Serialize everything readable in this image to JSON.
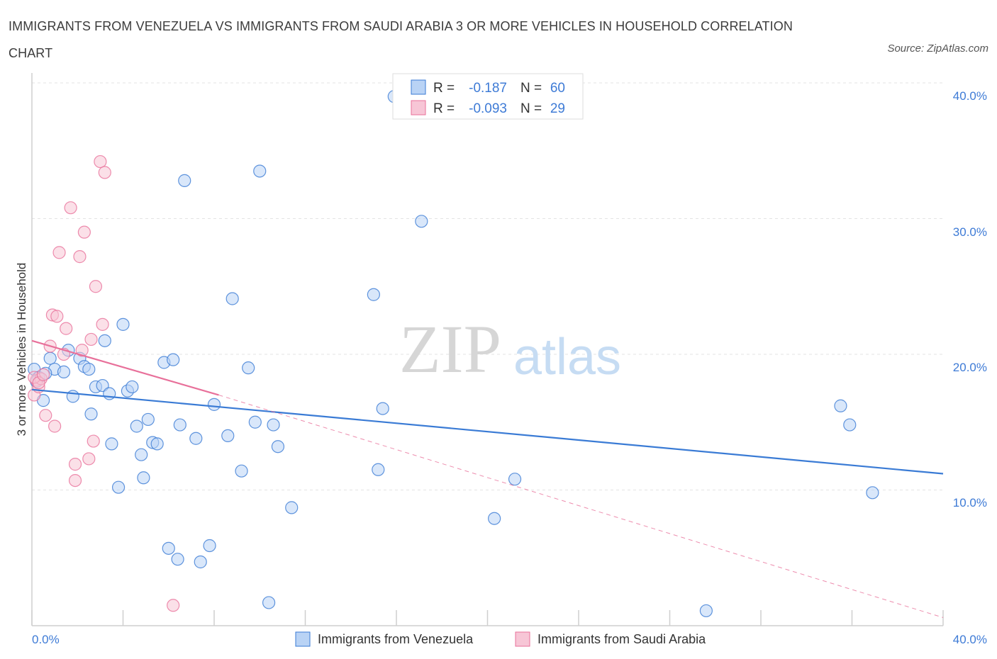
{
  "title": "IMMIGRANTS FROM VENEZUELA VS IMMIGRANTS FROM SAUDI ARABIA 3 OR MORE VEHICLES IN HOUSEHOLD CORRELATION CHART",
  "source": "Source: ZipAtlas.com",
  "watermark": {
    "zip": "ZIP",
    "atlas": "atlas"
  },
  "colors": {
    "blue": "#3a7bd5",
    "pink": "#e8709a",
    "blue_fill": "#b9d3f5",
    "pink_fill": "#f7c6d6"
  },
  "legend": {
    "rows": [
      {
        "r_label": "R =",
        "r_value": "-0.187",
        "n_label": "N =",
        "n_value": "60"
      },
      {
        "r_label": "R =",
        "r_value": "-0.093",
        "n_label": "N =",
        "n_value": "29"
      }
    ]
  },
  "chart_data": {
    "type": "scatter",
    "xlabel": "",
    "ylabel": "3 or more Vehicles in Household",
    "xlim": [
      0,
      40
    ],
    "ylim": [
      0,
      40
    ],
    "x_tick_labels": [
      "0.0%",
      "40.0%"
    ],
    "y_tick_labels": [
      "10.0%",
      "20.0%",
      "30.0%",
      "40.0%"
    ],
    "y_ticks": [
      10,
      20,
      30,
      40
    ],
    "series": [
      {
        "name": "Immigrants from Venezuela",
        "color": "#3a7bd5",
        "trend": {
          "x": [
            0,
            40
          ],
          "y": [
            17.4,
            11.2
          ],
          "style": "solid"
        },
        "points": [
          [
            0.1,
            18.9
          ],
          [
            0.3,
            18.3
          ],
          [
            0.5,
            16.6
          ],
          [
            0.8,
            19.7
          ],
          [
            1.0,
            18.9
          ],
          [
            1.4,
            18.7
          ],
          [
            1.6,
            20.3
          ],
          [
            1.8,
            16.9
          ],
          [
            2.1,
            19.7
          ],
          [
            2.3,
            19.1
          ],
          [
            2.5,
            18.9
          ],
          [
            2.6,
            15.6
          ],
          [
            2.8,
            17.6
          ],
          [
            3.1,
            17.7
          ],
          [
            3.2,
            21.0
          ],
          [
            3.4,
            17.1
          ],
          [
            3.5,
            13.4
          ],
          [
            3.8,
            10.2
          ],
          [
            4.0,
            22.2
          ],
          [
            4.2,
            17.3
          ],
          [
            4.4,
            17.6
          ],
          [
            4.6,
            14.7
          ],
          [
            4.8,
            12.6
          ],
          [
            4.9,
            10.9
          ],
          [
            5.1,
            15.2
          ],
          [
            5.3,
            13.5
          ],
          [
            5.5,
            13.4
          ],
          [
            5.8,
            19.4
          ],
          [
            6.0,
            5.7
          ],
          [
            6.2,
            19.6
          ],
          [
            6.4,
            4.9
          ],
          [
            6.5,
            14.8
          ],
          [
            6.7,
            32.8
          ],
          [
            7.2,
            13.8
          ],
          [
            7.4,
            4.7
          ],
          [
            7.8,
            5.9
          ],
          [
            8.0,
            16.3
          ],
          [
            8.6,
            14.0
          ],
          [
            8.8,
            24.1
          ],
          [
            9.2,
            11.4
          ],
          [
            9.5,
            19.0
          ],
          [
            9.8,
            15.0
          ],
          [
            10.0,
            33.5
          ],
          [
            10.4,
            1.7
          ],
          [
            10.6,
            14.8
          ],
          [
            10.8,
            13.2
          ],
          [
            11.4,
            8.7
          ],
          [
            15.0,
            24.4
          ],
          [
            15.2,
            11.5
          ],
          [
            15.4,
            16.0
          ],
          [
            15.9,
            39.0
          ],
          [
            17.1,
            29.8
          ],
          [
            20.3,
            7.9
          ],
          [
            21.2,
            10.8
          ],
          [
            29.6,
            1.1
          ],
          [
            35.5,
            16.2
          ],
          [
            35.9,
            14.8
          ],
          [
            36.9,
            9.8
          ],
          [
            0.2,
            18.0
          ],
          [
            0.6,
            18.6
          ]
        ]
      },
      {
        "name": "Immigrants from Saudi Arabia",
        "color": "#e8709a",
        "trend": {
          "x": [
            0,
            8.2
          ],
          "y": [
            21.0,
            17.0
          ],
          "style": "solid",
          "ext_x": [
            8.2,
            40
          ],
          "ext_y": [
            17.0,
            0.6
          ]
        },
        "points": [
          [
            0.1,
            17.0
          ],
          [
            0.2,
            18.1
          ],
          [
            0.3,
            17.6
          ],
          [
            0.4,
            18.2
          ],
          [
            0.6,
            15.5
          ],
          [
            0.8,
            20.6
          ],
          [
            0.9,
            22.9
          ],
          [
            1.0,
            14.7
          ],
          [
            1.1,
            22.8
          ],
          [
            1.2,
            27.5
          ],
          [
            1.4,
            20.0
          ],
          [
            1.5,
            21.9
          ],
          [
            1.7,
            30.8
          ],
          [
            1.9,
            10.7
          ],
          [
            1.9,
            11.9
          ],
          [
            2.1,
            27.2
          ],
          [
            2.2,
            20.3
          ],
          [
            2.3,
            29.0
          ],
          [
            2.5,
            12.3
          ],
          [
            2.6,
            21.1
          ],
          [
            2.7,
            13.6
          ],
          [
            2.8,
            25.0
          ],
          [
            3.0,
            34.2
          ],
          [
            3.1,
            22.2
          ],
          [
            3.2,
            33.4
          ],
          [
            6.2,
            1.5
          ],
          [
            0.1,
            18.3
          ],
          [
            0.3,
            17.9
          ],
          [
            0.5,
            18.5
          ]
        ]
      }
    ],
    "legend_position": "bottom"
  }
}
